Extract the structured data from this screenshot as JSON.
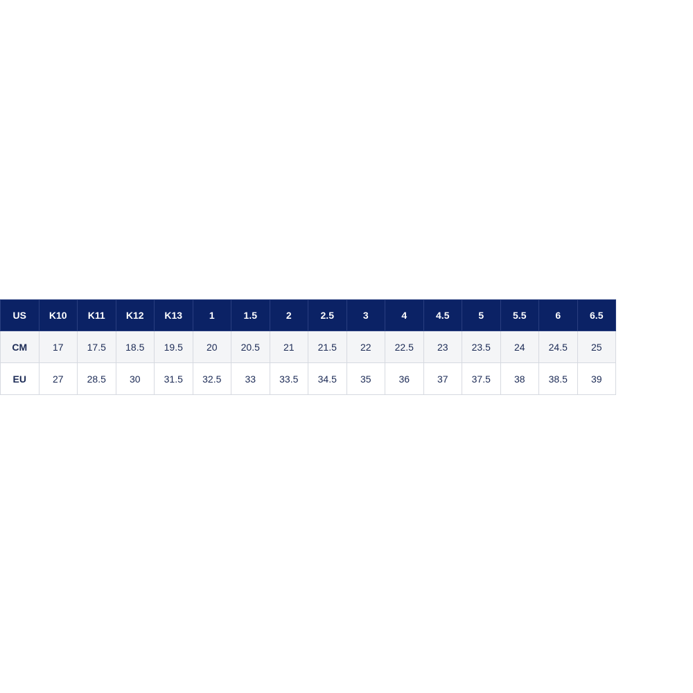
{
  "table": {
    "header_color": "#0b2265",
    "rows": [
      {
        "label": "US",
        "values": [
          "K10",
          "K11",
          "K12",
          "K13",
          "1",
          "1.5",
          "2",
          "2.5",
          "3",
          "4",
          "4.5",
          "5",
          "5.5",
          "6",
          "6.5"
        ]
      },
      {
        "label": "CM",
        "values": [
          "17",
          "17.5",
          "18.5",
          "19.5",
          "20",
          "20.5",
          "21",
          "21.5",
          "22",
          "22.5",
          "23",
          "23.5",
          "24",
          "24.5",
          "25"
        ]
      },
      {
        "label": "EU",
        "values": [
          "27",
          "28.5",
          "30",
          "31.5",
          "32.5",
          "33",
          "33.5",
          "34.5",
          "35",
          "36",
          "37",
          "37.5",
          "38",
          "38.5",
          "39"
        ]
      }
    ]
  }
}
